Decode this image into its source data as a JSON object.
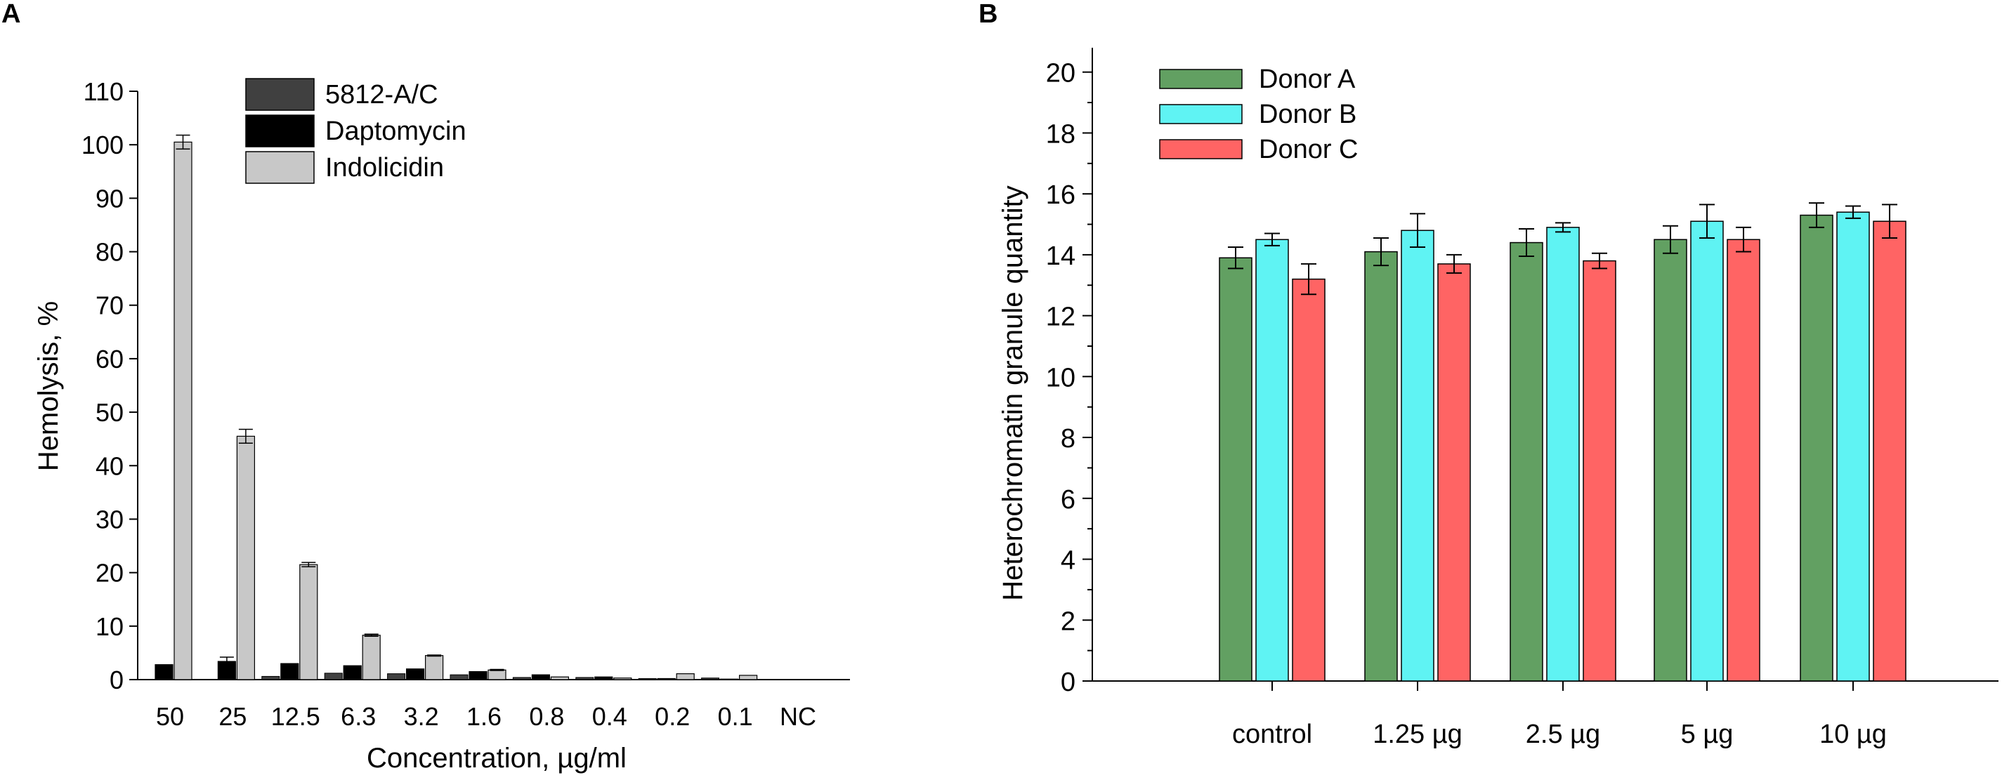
{
  "chart_data": [
    {
      "panel_label": "A",
      "type": "bar",
      "title": "",
      "xlabel": "Concentration, µg/ml",
      "ylabel": "Hemolysis, %",
      "ylim": [
        0,
        110
      ],
      "yticks": [
        0,
        10,
        20,
        30,
        40,
        50,
        60,
        70,
        80,
        90,
        100,
        110
      ],
      "categories": [
        "50",
        "25",
        "12.5",
        "6.3",
        "3.2",
        "1.6",
        "0.8",
        "0.4",
        "0.2",
        "0.1",
        "NC"
      ],
      "legend_position": "top-center",
      "series": [
        {
          "name": "5812-A/C",
          "color": "#404040",
          "values": [
            0,
            0,
            0,
            0,
            0,
            0,
            0,
            0,
            0,
            0,
            0
          ],
          "errors": [
            0,
            0,
            0,
            0,
            0,
            0,
            0,
            0,
            0,
            0,
            0
          ]
        },
        {
          "name": "Daptomycin",
          "color": "#000000",
          "values": [
            2.8,
            3.4,
            3.0,
            2.6,
            2.0,
            1.5,
            0.9,
            0.5,
            0.2,
            0.1,
            0
          ],
          "errors": [
            0,
            0.8,
            0,
            0,
            0,
            0,
            0,
            0,
            0,
            0,
            0
          ]
        },
        {
          "name": "Indolicidin",
          "color": "#c8c8c8",
          "values": [
            100.5,
            45.5,
            21.5,
            8.3,
            4.5,
            1.8,
            0.5,
            0.3,
            1.1,
            0.8,
            0
          ],
          "errors": [
            1.3,
            1.3,
            0.4,
            0.2,
            0.1,
            0.1,
            0,
            0,
            0,
            0,
            0
          ]
        }
      ],
      "extra_small_bars": [
        {
          "category": "50",
          "value": 0
        },
        {
          "category": "25",
          "value": 0
        },
        {
          "category": "12.5",
          "value": 0.6
        },
        {
          "category": "6.3",
          "value": 1.2
        },
        {
          "category": "3.2",
          "value": 1.1
        },
        {
          "category": "1.6",
          "value": 0.9
        },
        {
          "category": "0.8",
          "value": 0.4
        },
        {
          "category": "0.4",
          "value": 0.4
        },
        {
          "category": "0.2",
          "value": 0.2
        },
        {
          "category": "0.1",
          "value": 0.3
        },
        {
          "category": "NC",
          "value": 0
        }
      ]
    },
    {
      "panel_label": "B",
      "type": "bar",
      "title": "",
      "xlabel": "",
      "ylabel": "Heterochromatin granule quantity",
      "ylim": [
        0,
        20.8
      ],
      "yticks": [
        0,
        2,
        4,
        6,
        8,
        10,
        12,
        14,
        16,
        18,
        20
      ],
      "categories": [
        "control",
        "1.25 µg",
        "2.5 µg",
        "5 µg",
        "10 µg"
      ],
      "legend_position": "top-left",
      "series": [
        {
          "name": "Donor A",
          "color": "#62a062",
          "values": [
            13.9,
            14.1,
            14.4,
            14.5,
            15.3
          ],
          "errors": [
            0.35,
            0.45,
            0.45,
            0.45,
            0.4
          ]
        },
        {
          "name": "Donor B",
          "color": "#5ff3f3",
          "values": [
            14.5,
            14.8,
            14.9,
            15.1,
            15.4
          ],
          "errors": [
            0.2,
            0.55,
            0.15,
            0.55,
            0.2
          ]
        },
        {
          "name": "Donor C",
          "color": "#ff6464",
          "values": [
            13.2,
            13.7,
            13.8,
            14.5,
            15.1
          ],
          "errors": [
            0.5,
            0.3,
            0.25,
            0.4,
            0.55
          ]
        }
      ]
    }
  ]
}
